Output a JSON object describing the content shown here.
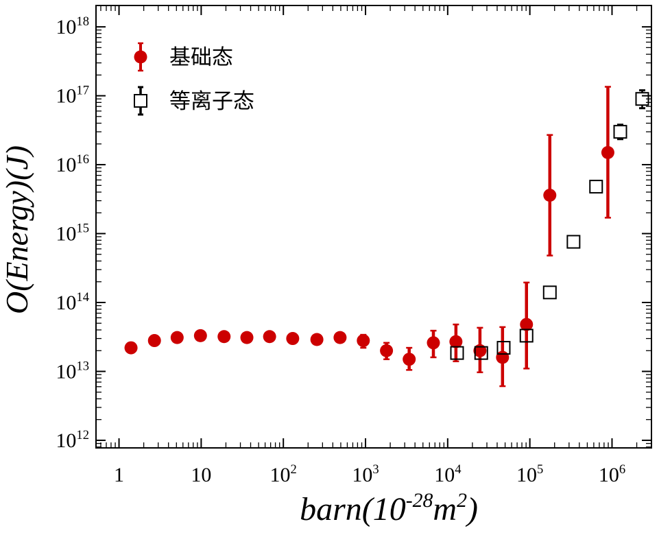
{
  "figure": {
    "background": "#ffffff"
  },
  "chart_data": {
    "type": "scatter",
    "title": "",
    "xlabel": "barn(10^{-28}m^{2})",
    "ylabel": "O(Energy)(J)",
    "xscale": "log",
    "yscale": "log",
    "grid": false,
    "legend_position": "upper-left",
    "x_log_range": [
      -0.28,
      6.48
    ],
    "y_log_range": [
      11.89,
      18.31
    ],
    "x_tick_labels": [
      {
        "exp": 0,
        "label": "1"
      },
      {
        "exp": 1,
        "label": "10"
      },
      {
        "exp": 2,
        "label": "10^{2}"
      },
      {
        "exp": 3,
        "label": "10^{3}"
      },
      {
        "exp": 4,
        "label": "10^{4}"
      },
      {
        "exp": 5,
        "label": "10^{5}"
      },
      {
        "exp": 6,
        "label": "10^{6}"
      }
    ],
    "y_tick_labels": [
      {
        "exp": 12,
        "label": "10^{12}"
      },
      {
        "exp": 13,
        "label": "10^{13}"
      },
      {
        "exp": 14,
        "label": "10^{14}"
      },
      {
        "exp": 15,
        "label": "10^{15}"
      },
      {
        "exp": 16,
        "label": "10^{16}"
      },
      {
        "exp": 17,
        "label": "10^{17}"
      },
      {
        "exp": 18,
        "label": "10^{18}"
      }
    ],
    "series": [
      {
        "name": "基础态",
        "marker": "filled-circle",
        "color": "#CC0000",
        "points": [
          {
            "x": 1.4,
            "y": 22000000000000.0
          },
          {
            "x": 2.7,
            "y": 28000000000000.0
          },
          {
            "x": 5.1,
            "y": 31000000000000.0
          },
          {
            "x": 9.8,
            "y": 33000000000000.0
          },
          {
            "x": 19,
            "y": 32000000000000.0
          },
          {
            "x": 36,
            "y": 31000000000000.0
          },
          {
            "x": 68,
            "y": 32000000000000.0
          },
          {
            "x": 130,
            "y": 30000000000000.0
          },
          {
            "x": 256,
            "y": 29000000000000.0
          },
          {
            "x": 490,
            "y": 31000000000000.0
          },
          {
            "x": 940,
            "y": 28000000000000.0,
            "y_lo": 22000000000000.0,
            "y_hi": 34000000000000.0
          },
          {
            "x": 1800,
            "y": 20000000000000.0,
            "y_lo": 15000000000000.0,
            "y_hi": 26000000000000.0
          },
          {
            "x": 3400,
            "y": 15000000000000.0,
            "y_lo": 10500000000000.0,
            "y_hi": 22000000000000.0
          },
          {
            "x": 6700,
            "y": 26000000000000.0,
            "y_lo": 16000000000000.0,
            "y_hi": 39000000000000.0
          },
          {
            "x": 12600,
            "y": 27000000000000.0,
            "y_lo": 14000000000000.0,
            "y_hi": 48000000000000.0
          },
          {
            "x": 24700,
            "y": 20000000000000.0,
            "y_lo": 9700000000000.0,
            "y_hi": 43000000000000.0
          },
          {
            "x": 46500,
            "y": 16000000000000.0,
            "y_lo": 6100000000000.0,
            "y_hi": 44000000000000.0
          },
          {
            "x": 91000,
            "y": 48000000000000.0,
            "y_lo": 11000000000000.0,
            "y_hi": 195000000000000.0
          },
          {
            "x": 175000,
            "y": 3600000000000000.0,
            "y_lo": 480000000000000.0,
            "y_hi": 2.7e+16
          },
          {
            "x": 890000,
            "y": 1.5e+16,
            "y_lo": 1700000000000000.0,
            "y_hi": 1.35e+17
          }
        ]
      },
      {
        "name": "等离子态",
        "marker": "open-square",
        "color": "#000000",
        "points": [
          {
            "x": 13000,
            "y": 18500000000000.0
          },
          {
            "x": 25600,
            "y": 18500000000000.0
          },
          {
            "x": 48000,
            "y": 22000000000000.0
          },
          {
            "x": 91000,
            "y": 33000000000000.0
          },
          {
            "x": 175000,
            "y": 140000000000000.0
          },
          {
            "x": 340000,
            "y": 760000000000000.0
          },
          {
            "x": 640000,
            "y": 4800000000000000.0
          },
          {
            "x": 1260000,
            "y": 3e+16,
            "y_lo": 2.35e+16,
            "y_hi": 3.8e+16
          },
          {
            "x": 2330000,
            "y": 9e+16,
            "y_lo": 6.6e+16,
            "y_hi": 1.2e+17
          }
        ]
      }
    ]
  }
}
